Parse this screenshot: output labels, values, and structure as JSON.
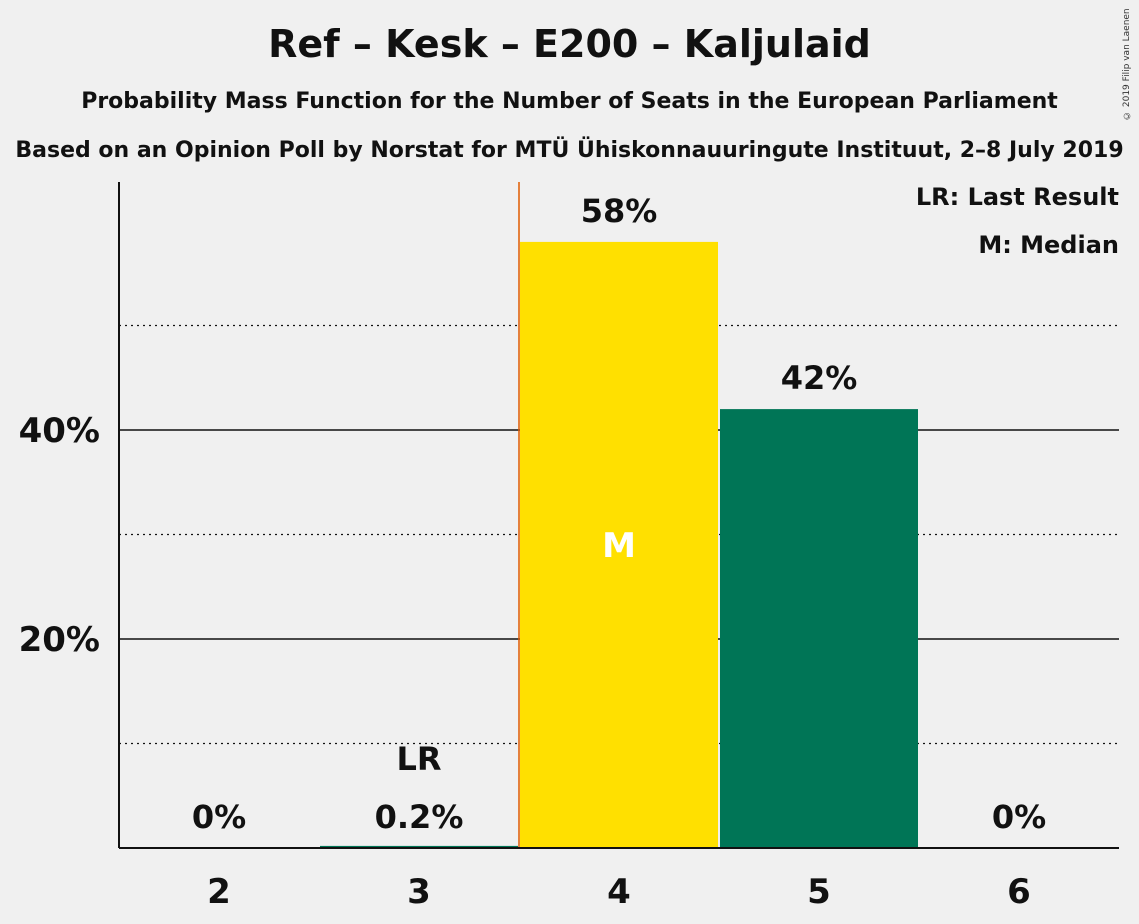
{
  "header": {
    "title": "Ref – Kesk – E200 – Kaljulaid",
    "subtitle": "Probability Mass Function for the Number of Seats in the European Parliament",
    "subtitle2": "Based on an Opinion Poll by Norstat for MTÜ Ühiskonnauuringute Instituut, 2–8 July 2019",
    "copyright": "© 2019 Filip van Laenen"
  },
  "legend": {
    "last_result": "LR: Last Result",
    "median": "M: Median"
  },
  "colors": {
    "median_bar": "#ffe000",
    "other_bar": "#007556",
    "last_result_line": "#e05a00",
    "background": "#f0f0f0"
  },
  "chart_data": {
    "type": "bar",
    "categories": [
      "2",
      "3",
      "4",
      "5",
      "6"
    ],
    "values": [
      0,
      0.2,
      58,
      42,
      0
    ],
    "value_labels": [
      "0%",
      "0.2%",
      "58%",
      "42%",
      "0%"
    ],
    "ytick_values": [
      20,
      40
    ],
    "ytick_labels": [
      "20%",
      "40%"
    ],
    "minor_gridlines": [
      10,
      30,
      50
    ],
    "ylim": [
      0,
      63.5
    ],
    "median_category": "4",
    "median_marker": "M",
    "last_result_category": "3",
    "last_result_marker": "LR",
    "legend_placement": "top-right"
  }
}
